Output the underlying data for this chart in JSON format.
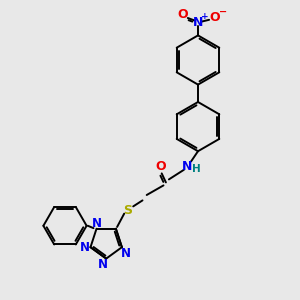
{
  "bg_color": "#e8e8e8",
  "bond_color": "#000000",
  "N_color": "#0000ee",
  "O_color": "#ee0000",
  "S_color": "#aaaa00",
  "H_color": "#008080",
  "figsize": [
    3.0,
    3.0
  ],
  "dpi": 100,
  "xlim": [
    0,
    10
  ],
  "ylim": [
    0,
    10
  ]
}
